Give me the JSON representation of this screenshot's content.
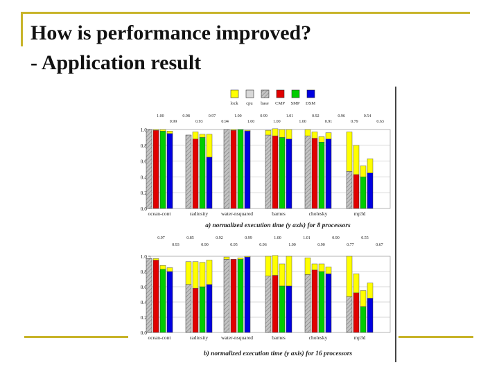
{
  "slide": {
    "title_line1": "How is performance improved?",
    "title_line2": "- Application result"
  },
  "legend": {
    "items": [
      {
        "label": "lock",
        "color": "#ffff00"
      },
      {
        "label": "cpu",
        "color": "#d0d0d0"
      },
      {
        "label": "base",
        "color": "#bbbbbb"
      },
      {
        "label": "CMP",
        "color": "#e00000"
      },
      {
        "label": "SMP",
        "color": "#00cc00"
      },
      {
        "label": "DSM",
        "color": "#0000e0"
      }
    ]
  },
  "chart_data": [
    {
      "type": "bar",
      "title": "a) normalized execution time (y axis) for 8 processors",
      "ylim": [
        0,
        1.0
      ],
      "yticks": [
        "0.0",
        "0.2",
        "0.4",
        "0.6",
        "0.8",
        "1.0"
      ],
      "categories": [
        "ocean-cont",
        "radiosity",
        "water-nsquared",
        "barnes",
        "cholesky",
        "mp3d"
      ],
      "series_names": [
        "base",
        "CMP",
        "SMP",
        "DSM"
      ],
      "series_colors": [
        "#bbbbbb",
        "#e00000",
        "#00cc00",
        "#0000e0"
      ],
      "top_labels": [
        [
          "1.00",
          "0.99",
          "0.98",
          "0.93",
          "0.97",
          "0.94",
          "1.00",
          "1.00",
          "0.99",
          "1.00",
          "1.01",
          "1.00",
          "0.92",
          "0.91",
          "0.96",
          "0.79",
          "0.54",
          "0.63"
        ]
      ],
      "bars": [
        [
          [
            1.0,
            0.0
          ],
          [
            0.99,
            0.01
          ],
          [
            0.98,
            0.02
          ],
          [
            0.95,
            0.03
          ]
        ],
        [
          [
            0.93,
            0.0
          ],
          [
            0.88,
            0.09
          ],
          [
            0.9,
            0.04
          ],
          [
            0.65,
            0.29
          ]
        ],
        [
          [
            1.0,
            0.0
          ],
          [
            0.99,
            0.01
          ],
          [
            1.0,
            0.0
          ],
          [
            0.98,
            0.01
          ]
        ],
        [
          [
            0.93,
            0.06
          ],
          [
            0.92,
            0.09
          ],
          [
            0.9,
            0.1
          ],
          [
            0.88,
            0.12
          ]
        ],
        [
          [
            0.92,
            0.08
          ],
          [
            0.89,
            0.08
          ],
          [
            0.84,
            0.07
          ],
          [
            0.88,
            0.08
          ]
        ],
        [
          [
            0.47,
            0.5
          ],
          [
            0.43,
            0.37
          ],
          [
            0.4,
            0.14
          ],
          [
            0.45,
            0.18
          ]
        ]
      ]
    },
    {
      "type": "bar",
      "title": "b) normalized execution time (y axis) for 16 processors",
      "ylim": [
        0,
        1.0
      ],
      "yticks": [
        "0.0",
        "0.2",
        "0.4",
        "0.6",
        "0.8",
        "1.0"
      ],
      "categories": [
        "ocean-cont",
        "radiosity",
        "water-nsquared",
        "barnes",
        "cholesky",
        "mp3d"
      ],
      "series_names": [
        "base",
        "CMP",
        "SMP",
        "DSM"
      ],
      "series_colors": [
        "#bbbbbb",
        "#e00000",
        "#00cc00",
        "#0000e0"
      ],
      "top_labels": [
        [
          "0.97",
          "0.93",
          "0.85",
          "0.90",
          "0.92",
          "0.95",
          "0.99",
          "0.96",
          "1.00",
          "1.00",
          "1.01",
          "0.90",
          "0.90",
          "0.77",
          "0.55",
          "0.67"
        ]
      ],
      "bars": [
        [
          [
            0.97,
            0.0
          ],
          [
            0.95,
            0.02
          ],
          [
            0.83,
            0.05
          ],
          [
            0.8,
            0.05
          ]
        ],
        [
          [
            0.63,
            0.3
          ],
          [
            0.58,
            0.35
          ],
          [
            0.6,
            0.32
          ],
          [
            0.63,
            0.32
          ]
        ],
        [
          [
            0.96,
            0.03
          ],
          [
            0.96,
            0.0
          ],
          [
            0.96,
            0.02
          ],
          [
            0.99,
            0.01
          ]
        ],
        [
          [
            0.74,
            0.26
          ],
          [
            0.75,
            0.26
          ],
          [
            0.61,
            0.29
          ],
          [
            0.61,
            0.39
          ]
        ],
        [
          [
            0.76,
            0.22
          ],
          [
            0.82,
            0.08
          ],
          [
            0.8,
            0.1
          ],
          [
            0.77,
            0.09
          ]
        ],
        [
          [
            0.47,
            0.53
          ],
          [
            0.52,
            0.25
          ],
          [
            0.34,
            0.21
          ],
          [
            0.45,
            0.2
          ]
        ]
      ]
    }
  ]
}
